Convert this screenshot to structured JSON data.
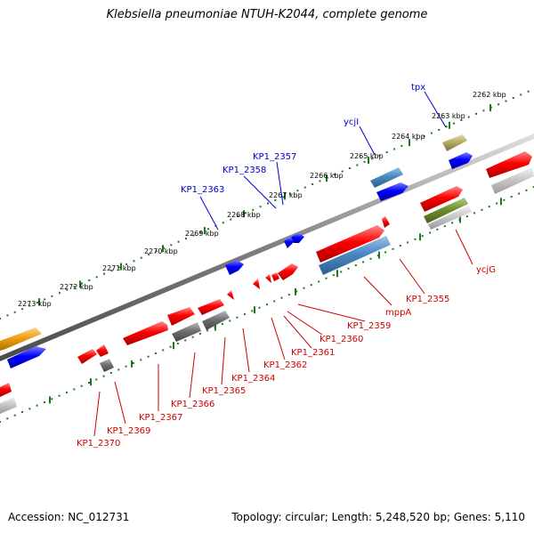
{
  "title": "Klebsiella pneumoniae NTUH-K2044, complete genome",
  "footer": {
    "accession": "Accession: NC_012731",
    "summary": "Topology: circular; Length: 5,248,520 bp; Genes: 5,110"
  },
  "colors": {
    "backbone": "#7f7f7f",
    "tick": "#1a7a1a",
    "forward_gene": "#ff0000",
    "label_blue": "#0000cc",
    "label_red": "#cc0000"
  },
  "scale_labels": [
    "2262 kbp",
    "2263 kbp",
    "2264 kbp",
    "2265 kbp",
    "2266 kbp",
    "2267 kbp",
    "2268 kbp",
    "2269 kbp",
    "2270 kbp",
    "2271 kbp",
    "2272 kbp",
    "2273 kbp"
  ],
  "top_gene_labels": [
    "tpx",
    "ycjI",
    "KP1_2357",
    "KP1_2358",
    "KP1_2363"
  ],
  "bottom_gene_labels": [
    "ycjG",
    "KP1_2355",
    "mppA",
    "KP1_2359",
    "KP1_2360",
    "KP1_2361",
    "KP1_2362",
    "KP1_2364",
    "KP1_2365",
    "KP1_2366",
    "KP1_2367",
    "KP1_2369",
    "KP1_2370"
  ]
}
